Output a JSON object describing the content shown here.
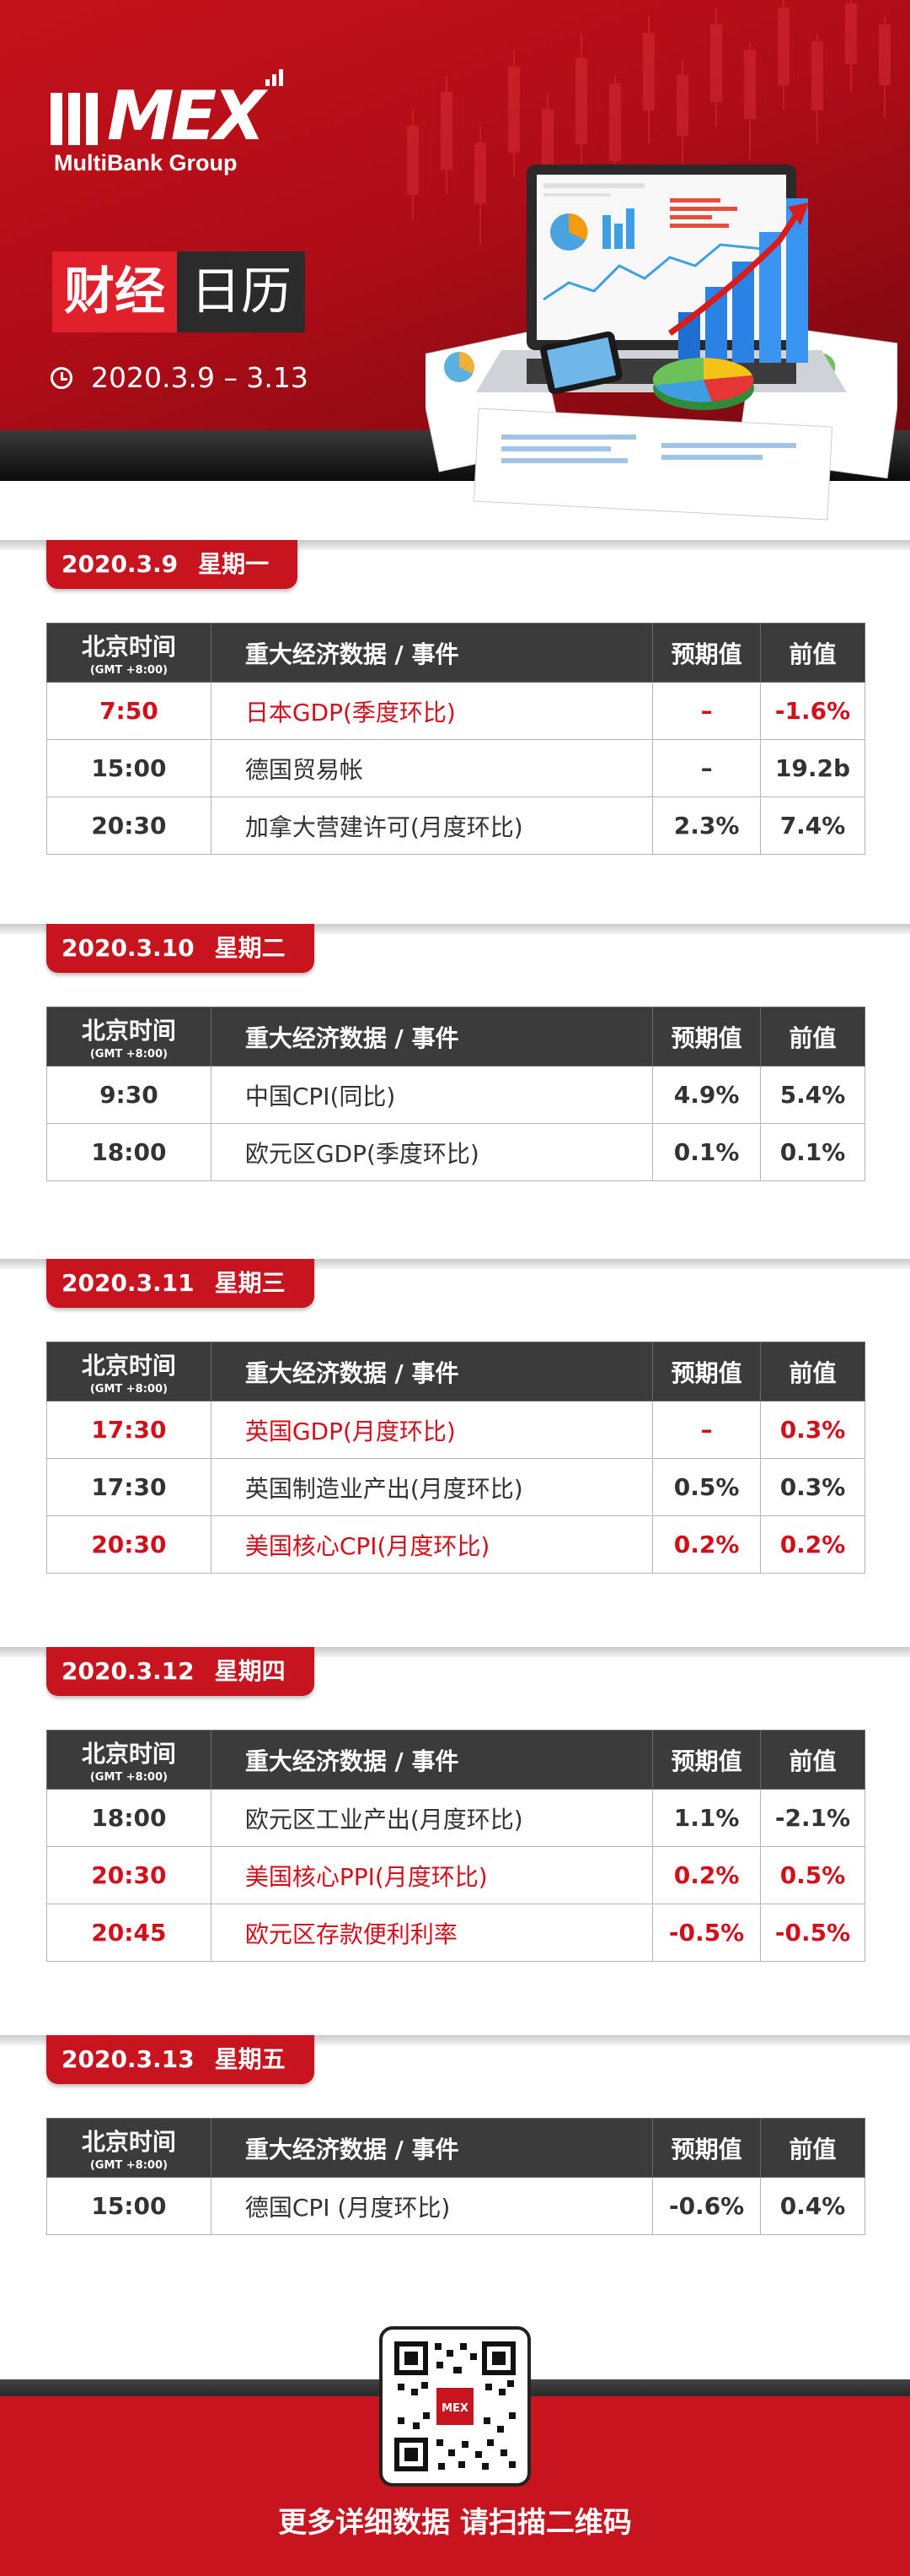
{
  "header": {
    "logo_text": "MEX",
    "logo_sub": "MultiBank Group",
    "title_part1": "财经",
    "title_part2": "日历",
    "date_range": "2020.3.9 – 3.13"
  },
  "table_headers": {
    "time": "北京时间",
    "time_sub": "(GMT +8:00)",
    "event": "重大经济数据 / 事件",
    "forecast": "预期值",
    "previous": "前值"
  },
  "days": [
    {
      "date": "2020.3.9",
      "weekday": "星期一",
      "rows": [
        {
          "time": "7:50",
          "event": "日本GDP(季度环比)",
          "forecast": "–",
          "previous": "-1.6%",
          "highlight": true
        },
        {
          "time": "15:00",
          "event": "德国贸易帐",
          "forecast": "–",
          "previous": "19.2b",
          "highlight": false
        },
        {
          "time": "20:30",
          "event": "加拿大营建许可(月度环比)",
          "forecast": "2.3%",
          "previous": "7.4%",
          "highlight": false
        }
      ]
    },
    {
      "date": "2020.3.10",
      "weekday": "星期二",
      "rows": [
        {
          "time": "9:30",
          "event": "中国CPI(同比)",
          "forecast": "4.9%",
          "previous": "5.4%",
          "highlight": false
        },
        {
          "time": "18:00",
          "event": "欧元区GDP(季度环比)",
          "forecast": "0.1%",
          "previous": "0.1%",
          "highlight": false
        }
      ]
    },
    {
      "date": "2020.3.11",
      "weekday": "星期三",
      "rows": [
        {
          "time": "17:30",
          "event": "英国GDP(月度环比)",
          "forecast": "–",
          "previous": "0.3%",
          "highlight": true
        },
        {
          "time": "17:30",
          "event": "英国制造业产出(月度环比)",
          "forecast": "0.5%",
          "previous": "0.3%",
          "highlight": false
        },
        {
          "time": "20:30",
          "event": "美国核心CPI(月度环比)",
          "forecast": "0.2%",
          "previous": "0.2%",
          "highlight": true
        }
      ]
    },
    {
      "date": "2020.3.12",
      "weekday": "星期四",
      "rows": [
        {
          "time": "18:00",
          "event": "欧元区工业产出(月度环比)",
          "forecast": "1.1%",
          "previous": "-2.1%",
          "highlight": false
        },
        {
          "time": "20:30",
          "event": "美国核心PPI(月度环比)",
          "forecast": "0.2%",
          "previous": "0.5%",
          "highlight": true
        },
        {
          "time": "20:45",
          "event": "欧元区存款便利利率",
          "forecast": "-0.5%",
          "previous": "-0.5%",
          "highlight": true
        }
      ]
    },
    {
      "date": "2020.3.13",
      "weekday": "星期五",
      "rows": [
        {
          "time": "15:00",
          "event": "德国CPI (月度环比)",
          "forecast": "-0.6%",
          "previous": "0.4%",
          "highlight": false
        }
      ]
    }
  ],
  "footer": {
    "cta_text": "更多详细数据 请扫描二维码",
    "qr_badge": "MEX"
  },
  "colors": {
    "brand_red": "#c8141e",
    "highlight_text": "#d2101c",
    "header_dark": "#3b3b3b"
  },
  "icons": [
    "clock-icon",
    "qr-code-icon",
    "laptop-illustration-icon"
  ]
}
